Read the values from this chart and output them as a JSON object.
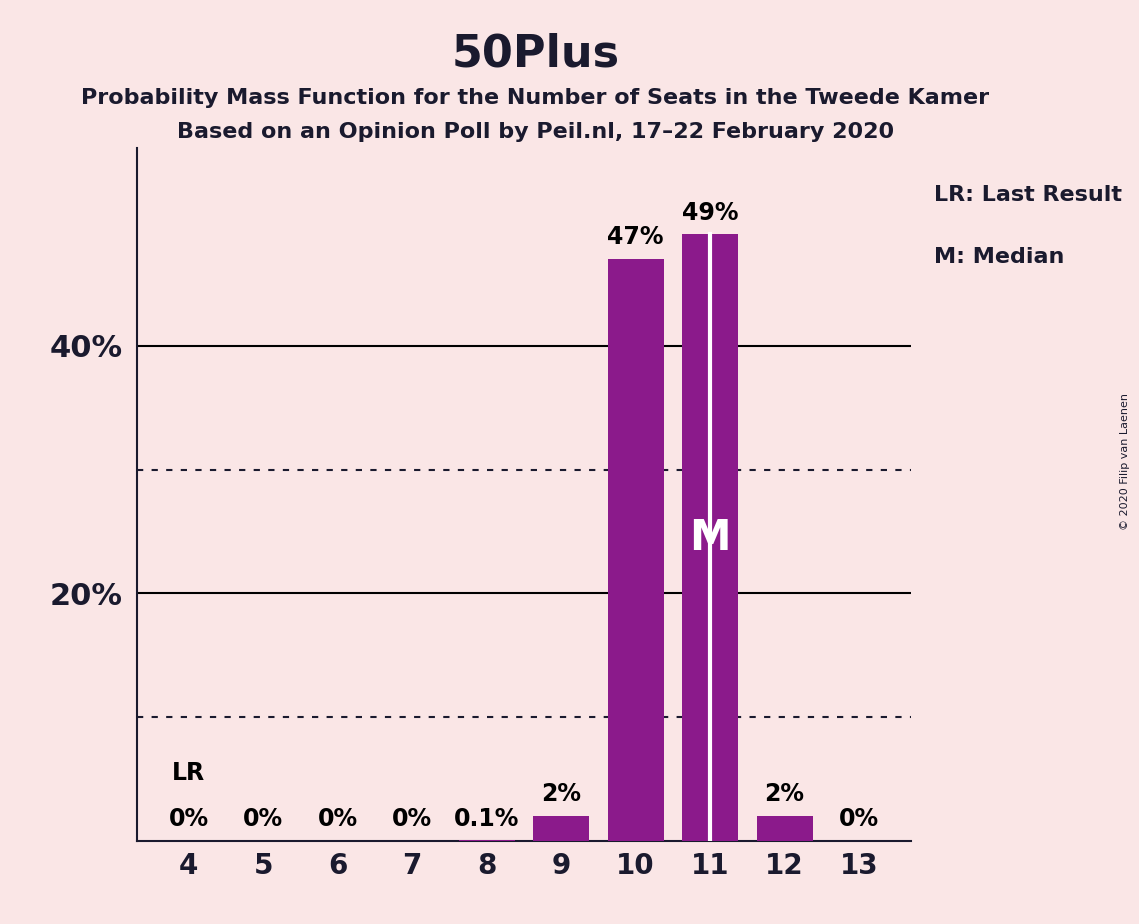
{
  "title": "50Plus",
  "subtitle1": "Probability Mass Function for the Number of Seats in the Tweede Kamer",
  "subtitle2": "Based on an Opinion Poll by Peil.nl, 17–22 February 2020",
  "copyright": "© 2020 Filip van Laenen",
  "categories": [
    4,
    5,
    6,
    7,
    8,
    9,
    10,
    11,
    12,
    13
  ],
  "values": [
    0.0,
    0.0,
    0.0,
    0.0,
    0.1,
    2.0,
    47.0,
    49.0,
    2.0,
    0.0
  ],
  "bar_color": "#8B1A8B",
  "background_color": "#FAE6E6",
  "median_seat": 11,
  "lr_seat": 4,
  "labels": [
    "0%",
    "0%",
    "0%",
    "0%",
    "0.1%",
    "2%",
    "47%",
    "49%",
    "2%",
    "0%"
  ],
  "lr_label": "LR",
  "median_label": "M",
  "legend_lr": "LR: Last Result",
  "legend_m": "M: Median",
  "ylim": [
    0,
    56
  ],
  "dotted_lines": [
    10,
    30
  ],
  "solid_lines": [
    20,
    40
  ],
  "title_fontsize": 32,
  "subtitle_fontsize": 16,
  "label_fontsize": 17,
  "tick_fontsize": 20,
  "ytick_labels_fontsize": 22,
  "legend_fontsize": 16
}
